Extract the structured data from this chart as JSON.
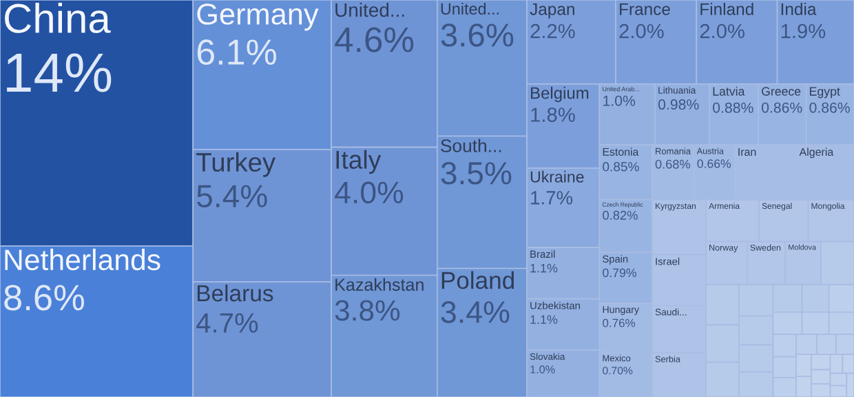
{
  "chart_data": {
    "type": "other",
    "categories": [
      "China",
      "Netherlands",
      "Germany",
      "Turkey",
      "Belarus",
      "United...",
      "Italy",
      "Kazakhstan",
      "United...",
      "South...",
      "Poland",
      "Japan",
      "France",
      "Finland",
      "India",
      "Belgium",
      "Ukraine",
      "Brazil",
      "Uzbekistan",
      "Slovakia",
      "United Arab...",
      "Lithuania",
      "Latvia",
      "Greece",
      "Egypt",
      "Estonia",
      "Czech Republic",
      "Spain",
      "Hungary",
      "Mexico",
      "Romania",
      "Austria",
      "Iran",
      "Algeria",
      "Kyrgyzstan",
      "Israel",
      "Saudi...",
      "Serbia",
      "Armenia",
      "Senegal",
      "Mongolia",
      "Norway",
      "Sweden",
      "Moldova",
      null,
      null,
      null,
      null,
      null,
      null,
      null,
      null,
      null,
      null,
      null,
      null,
      null,
      null,
      null,
      null,
      null,
      null,
      null,
      null,
      null,
      null,
      null,
      null,
      null,
      null,
      null,
      null,
      null,
      null
    ],
    "values": [
      14,
      8.6,
      6.1,
      5.4,
      4.7,
      4.6,
      4.0,
      3.8,
      3.6,
      3.5,
      3.4,
      2.2,
      2.0,
      2.0,
      1.9,
      1.8,
      1.7,
      1.1,
      1.1,
      1.0,
      1.0,
      0.98,
      0.88,
      0.86,
      0.86,
      0.85,
      0.82,
      0.79,
      0.76,
      0.7,
      0.68,
      0.66,
      null,
      null,
      null,
      null,
      null,
      null,
      null,
      null,
      null,
      null,
      null,
      null,
      null,
      null,
      null,
      null,
      null,
      null,
      null,
      null,
      null,
      null,
      null,
      null,
      null,
      null,
      null,
      null,
      null,
      null,
      null,
      null,
      null,
      null,
      null,
      null,
      null,
      null,
      null,
      null,
      null,
      null
    ],
    "value_labels": [
      "14%",
      "8.6%",
      "6.1%",
      "5.4%",
      "4.7%",
      "4.6%",
      "4.0%",
      "3.8%",
      "3.6%",
      "3.5%",
      "3.4%",
      "2.2%",
      "2.0%",
      "2.0%",
      "1.9%",
      "1.8%",
      "1.7%",
      "1.1%",
      "1.1%",
      "1.0%",
      "1.0%",
      "0.98%",
      "0.88%",
      "0.86%",
      "0.86%",
      "0.85%",
      "0.82%",
      "0.79%",
      "0.76%",
      "0.70%",
      "0.68%",
      "0.66%",
      null,
      null,
      null,
      null,
      null,
      null,
      null,
      null,
      null,
      null,
      null,
      null,
      null,
      null,
      null,
      null,
      null,
      null,
      null,
      null,
      null,
      null,
      null,
      null,
      null,
      null,
      null,
      null,
      null,
      null,
      null,
      null,
      null,
      null,
      null,
      null,
      null,
      null,
      null,
      null,
      null,
      null
    ],
    "colors": [
      "#2352a3",
      "#4a80d8",
      "#6490d8",
      "#6f94d6",
      "#6f94d6",
      "#6f94d6",
      "#6f94d6",
      "#7097d6",
      "#7097d6",
      "#7097d6",
      "#7097d6",
      "#7c9fdb",
      "#7c9fdb",
      "#7c9fdb",
      "#7c9fdb",
      "#7c9fdb",
      "#8aa9de",
      "#93b0e1",
      "#93b0e1",
      "#93b0e1",
      "#93b0e1",
      "#93b0e1",
      "#98b4e2",
      "#98b4e2",
      "#98b4e2",
      "#98b4e2",
      "#98b4e2",
      "#98b4e2",
      "#a2bbe5",
      "#a2bbe5",
      "#a2bbe5",
      "#a2bbe5",
      "#a6bee6",
      "#a6bee6",
      "#adc3e8",
      "#adc3e8",
      "#adc3e8",
      "#adc3e8",
      "#b1c6e9",
      "#b1c6e9",
      "#b1c6e9",
      "#b1c6e9",
      "#b1c6e9",
      "#b1c6e9",
      "#b6caea",
      "#b6caea",
      "#b6caea",
      "#b6caea",
      "#b6caea",
      "#b6caea",
      "#b6caea",
      "#b6caea",
      "#b6caea",
      "#b6caea",
      "#bccfec",
      "#bccfec",
      "#bccfec",
      "#bccfec",
      "#bccfec",
      "#bccfec",
      "#bccfec",
      "#bccfec",
      "#bccfec",
      "#bccfec",
      "#c2d3ee",
      "#c2d3ee",
      "#c2d3ee",
      "#c2d3ee",
      "#c2d3ee",
      "#c2d3ee",
      "#c2d3ee",
      "#c2d3ee",
      "#c2d3ee",
      "#c2d3ee"
    ]
  }
}
